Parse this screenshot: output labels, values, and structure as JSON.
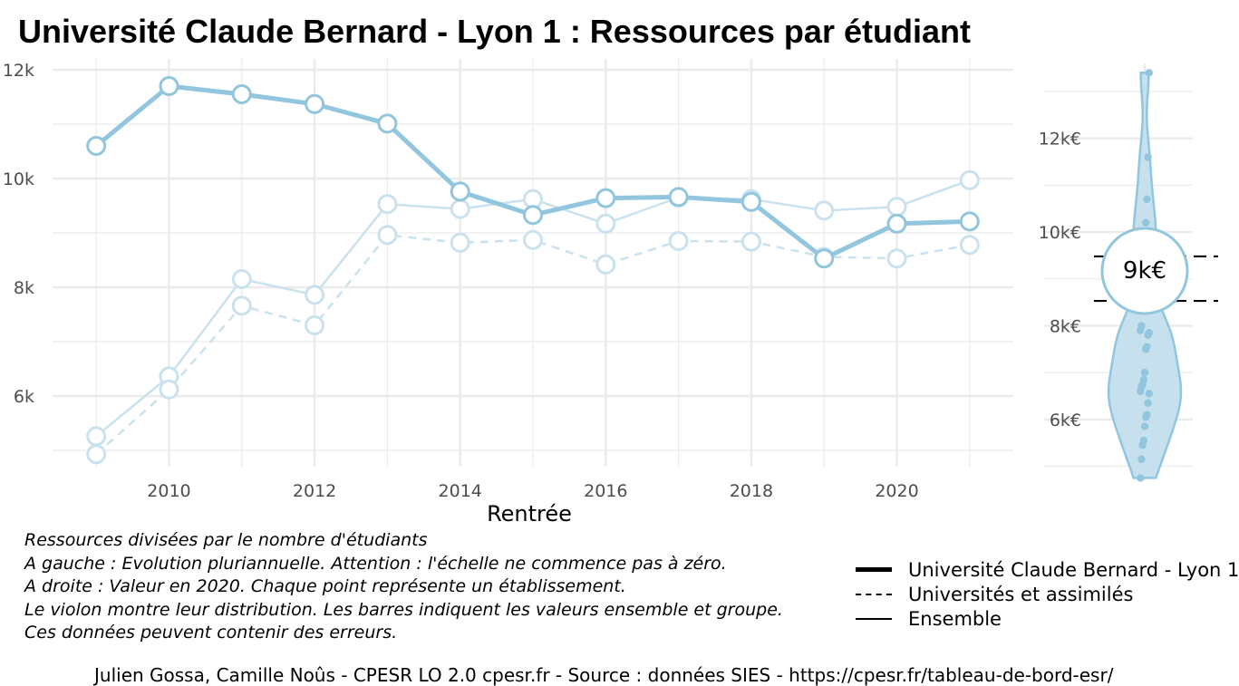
{
  "title": "Université Claude Bernard - Lyon 1  :  Ressources par étudiant",
  "chart_data": [
    {
      "type": "line",
      "xlabel": "Rentrée",
      "ylabel": "",
      "x": [
        2009,
        2010,
        2011,
        2012,
        2013,
        2014,
        2015,
        2016,
        2017,
        2018,
        2019,
        2020,
        2021
      ],
      "xlim": [
        2008.4,
        2021.6
      ],
      "ylim": [
        4700,
        12200
      ],
      "x_ticks": [
        2010,
        2012,
        2014,
        2016,
        2018,
        2020
      ],
      "y_ticks": [
        6000,
        8000,
        10000,
        12000
      ],
      "y_tick_labels": [
        "6k",
        "8k",
        "10k",
        "12k"
      ],
      "grid": true,
      "series": [
        {
          "name": "Université Claude Bernard - Lyon 1",
          "style": "solid-thick",
          "values": [
            10600,
            11700,
            11550,
            11370,
            11010,
            9760,
            9330,
            9640,
            9660,
            9570,
            8530,
            9170,
            9210
          ]
        },
        {
          "name": "Universités et assimilés",
          "style": "dashed",
          "values": [
            4930,
            6120,
            7660,
            7300,
            8960,
            8820,
            8870,
            8420,
            8850,
            8840,
            8560,
            8530,
            8780
          ]
        },
        {
          "name": "Ensemble",
          "style": "solid-thin",
          "values": [
            5260,
            6360,
            8150,
            7860,
            9530,
            9440,
            9620,
            9170,
            9650,
            9620,
            9410,
            9480,
            9970
          ]
        }
      ],
      "colors": {
        "line": "#92c5de",
        "line_faded": "#c9e2ee",
        "grid": "#ebebeb"
      }
    },
    {
      "type": "violin",
      "ylim": [
        4700,
        13600
      ],
      "y_ticks": [
        6000,
        8000,
        10000,
        12000
      ],
      "y_tick_labels": [
        "6k€",
        "8k€",
        "10k€",
        "12k€"
      ],
      "highlight_value": 9170,
      "highlight_label": "9k€",
      "bar_values": [
        9480,
        8530
      ],
      "points": [
        4750,
        5150,
        5450,
        5550,
        5850,
        6050,
        6100,
        6350,
        6550,
        6600,
        6700,
        6750,
        6850,
        7000,
        7500,
        7550,
        7800,
        7850,
        7900,
        8000,
        9000,
        9300,
        9700,
        10200,
        10700,
        11600,
        13400
      ],
      "colors": {
        "fill": "#c6e0ee",
        "stroke": "#92c5de",
        "points": "#92c5de"
      }
    }
  ],
  "notes": [
    "Ressources divisées par le nombre d'étudiants",
    "A gauche : Evolution pluriannuelle. Attention : l'échelle ne commence pas à zéro.",
    "A droite : Valeur en 2020. Chaque point représente un établissement.",
    "Le violon montre leur distribution. Les barres indiquent les valeurs ensemble et groupe.",
    "Ces données peuvent contenir des erreurs."
  ],
  "legend": [
    "Université Claude Bernard - Lyon 1",
    "Universités et assimilés",
    "Ensemble"
  ],
  "caption": "Julien Gossa, Camille Noûs - CPESR LO 2.0 cpesr.fr - Source : données SIES - https://cpesr.fr/tableau-de-bord-esr/"
}
